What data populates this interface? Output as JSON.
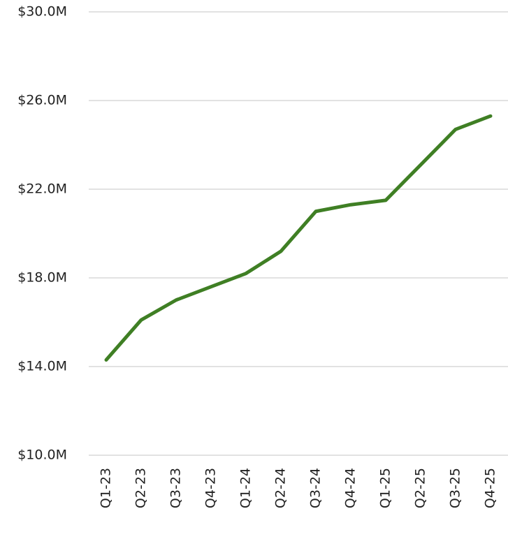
{
  "chart_data": {
    "type": "line",
    "categories": [
      "Q1-23",
      "Q2-23",
      "Q3-23",
      "Q4-23",
      "Q1-24",
      "Q2-24",
      "Q3-24",
      "Q4-24",
      "Q1-25",
      "Q2-25",
      "Q3-25",
      "Q4-25"
    ],
    "series": [
      {
        "color": "#3f7f24",
        "values": [
          14.3,
          16.1,
          17.0,
          17.6,
          18.2,
          19.2,
          21.0,
          21.3,
          21.5,
          23.1,
          24.7,
          25.3
        ]
      }
    ],
    "ylim": [
      10,
      30
    ],
    "yticks": [
      {
        "value": 10,
        "label": "$10.0M"
      },
      {
        "value": 14,
        "label": "$14.0M"
      },
      {
        "value": 18,
        "label": "$18.0M"
      },
      {
        "value": 22,
        "label": "$22.0M"
      },
      {
        "value": 26,
        "label": "$26.0M"
      },
      {
        "value": 30,
        "label": "$30.0M"
      }
    ],
    "grid": true
  }
}
